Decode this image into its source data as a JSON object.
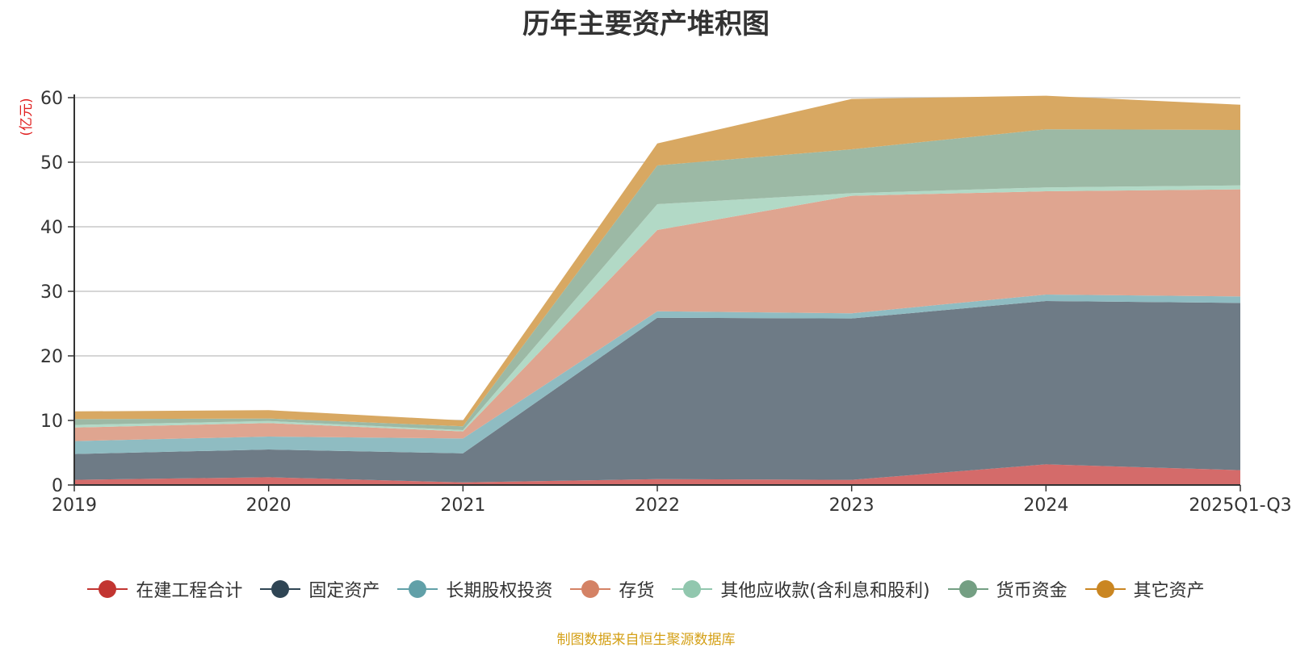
{
  "chart_data": {
    "type": "area",
    "stacked": true,
    "title": "历年主要资产堆积图",
    "unit_label": "(亿元)",
    "categories": [
      "2019",
      "2020",
      "2021",
      "2022",
      "2023",
      "2024",
      "2025Q1-Q3"
    ],
    "y_ticks": [
      "0",
      "10",
      "20",
      "30",
      "40",
      "50",
      "60"
    ],
    "ylim": [
      0,
      60
    ],
    "grid": true,
    "legend_position": "bottom",
    "series": [
      {
        "name": "在建工程合计",
        "color": "#c23531",
        "fill": "#d46b6a",
        "values": [
          0.8,
          1.2,
          0.4,
          0.9,
          0.8,
          3.2,
          2.3
        ]
      },
      {
        "name": "固定资产",
        "color": "#2f4554",
        "fill": "#6e7b86",
        "values": [
          4.0,
          4.3,
          4.5,
          25.0,
          25.0,
          25.3,
          25.9
        ]
      },
      {
        "name": "长期股权投资",
        "color": "#61a0a8",
        "fill": "#8fbcc2",
        "values": [
          2.0,
          2.0,
          2.3,
          1.0,
          0.8,
          1.0,
          1.0
        ]
      },
      {
        "name": "存货",
        "color": "#d48265",
        "fill": "#dfa590",
        "values": [
          2.1,
          2.1,
          1.1,
          12.6,
          18.2,
          16.0,
          16.6
        ]
      },
      {
        "name": "其他应收款(含利息和股利)",
        "color": "#91c7ae",
        "fill": "#b2d9c6",
        "values": [
          0.4,
          0.3,
          0.2,
          4.0,
          0.4,
          0.6,
          0.6
        ]
      },
      {
        "name": "货币资金",
        "color": "#749f83",
        "fill": "#9cb9a5",
        "values": [
          0.9,
          0.4,
          0.6,
          6.0,
          6.8,
          9.0,
          8.6
        ]
      },
      {
        "name": "其它资产",
        "color": "#ca8622",
        "fill": "#d8a862",
        "values": [
          1.2,
          1.3,
          0.9,
          3.4,
          7.8,
          5.2,
          3.9
        ]
      }
    ]
  },
  "footer": {
    "source": "制图数据来自恒生聚源数据库"
  }
}
